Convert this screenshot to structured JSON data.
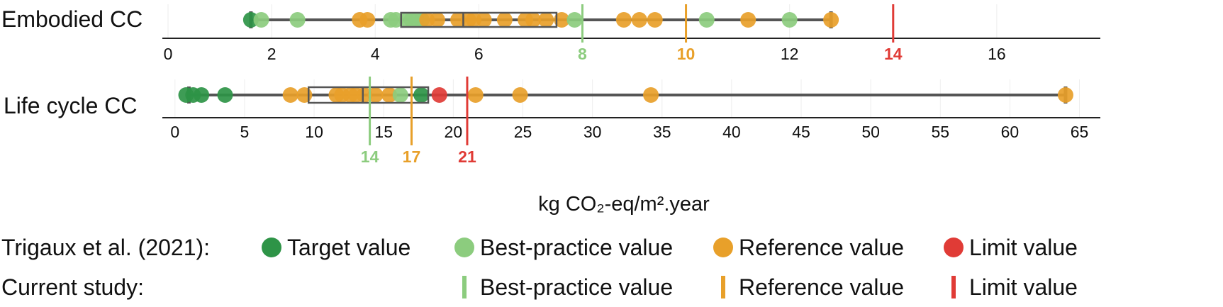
{
  "colors": {
    "target": "#2e9447",
    "best_practice": "#8ccc7e",
    "reference": "#e8a02a",
    "limit": "#e03b36",
    "box": "#555555",
    "axis": "#222222",
    "grid": "#eeeeee"
  },
  "chart_data": [
    {
      "type": "box-strip",
      "row_label": "Embodied CC",
      "xlim": [
        0,
        18
      ],
      "ticks": [
        0,
        2,
        4,
        6,
        8,
        10,
        12,
        14,
        16
      ],
      "tick_labels": [
        "0",
        "2",
        "4",
        "6",
        "8",
        "10",
        "12",
        "14",
        "16"
      ],
      "box": {
        "min": 1.6,
        "q1": 4.5,
        "median": 5.7,
        "q3": 7.5,
        "max": 12.8
      },
      "points": [
        {
          "x": 1.6,
          "class": "target"
        },
        {
          "x": 1.8,
          "class": "best_practice"
        },
        {
          "x": 2.5,
          "class": "best_practice"
        },
        {
          "x": 3.7,
          "class": "reference"
        },
        {
          "x": 3.85,
          "class": "reference"
        },
        {
          "x": 4.3,
          "class": "best_practice"
        },
        {
          "x": 4.4,
          "class": "best_practice"
        },
        {
          "x": 4.6,
          "class": "best_practice"
        },
        {
          "x": 4.7,
          "class": "best_practice"
        },
        {
          "x": 4.8,
          "class": "best_practice"
        },
        {
          "x": 4.9,
          "class": "best_practice"
        },
        {
          "x": 5.0,
          "class": "reference"
        },
        {
          "x": 5.2,
          "class": "reference"
        },
        {
          "x": 5.6,
          "class": "reference"
        },
        {
          "x": 5.8,
          "class": "reference"
        },
        {
          "x": 5.9,
          "class": "reference"
        },
        {
          "x": 6.1,
          "class": "reference"
        },
        {
          "x": 6.5,
          "class": "reference"
        },
        {
          "x": 6.9,
          "class": "reference"
        },
        {
          "x": 7.05,
          "class": "reference"
        },
        {
          "x": 7.3,
          "class": "reference"
        },
        {
          "x": 7.6,
          "class": "reference"
        },
        {
          "x": 7.85,
          "class": "best_practice"
        },
        {
          "x": 8.8,
          "class": "reference"
        },
        {
          "x": 9.1,
          "class": "reference"
        },
        {
          "x": 9.4,
          "class": "reference"
        },
        {
          "x": 10.4,
          "class": "best_practice"
        },
        {
          "x": 11.2,
          "class": "reference"
        },
        {
          "x": 12.0,
          "class": "best_practice"
        },
        {
          "x": 12.8,
          "class": "reference"
        }
      ],
      "thresholds": [
        {
          "value": 8,
          "label": "8",
          "class": "best_practice"
        },
        {
          "value": 10,
          "label": "10",
          "class": "reference"
        },
        {
          "value": 14,
          "label": "14",
          "class": "limit"
        }
      ]
    },
    {
      "type": "box-strip",
      "row_label": "Life cycle CC",
      "xlim": [
        -0.5,
        66.5
      ],
      "ticks": [
        0,
        5,
        10,
        15,
        20,
        25,
        30,
        35,
        40,
        45,
        50,
        55,
        60,
        65
      ],
      "tick_labels": [
        "0",
        "5",
        "10",
        "15",
        "20",
        "25",
        "30",
        "35",
        "40",
        "45",
        "50",
        "55",
        "60",
        "65"
      ],
      "box": {
        "min": 1.0,
        "q1": 9.6,
        "median": 13.5,
        "q3": 18.2,
        "max": 64.0
      },
      "points": [
        {
          "x": 0.8,
          "class": "target"
        },
        {
          "x": 1.3,
          "class": "target"
        },
        {
          "x": 1.9,
          "class": "target"
        },
        {
          "x": 3.6,
          "class": "target"
        },
        {
          "x": 8.3,
          "class": "reference"
        },
        {
          "x": 9.3,
          "class": "reference"
        },
        {
          "x": 11.6,
          "class": "reference"
        },
        {
          "x": 12.0,
          "class": "reference"
        },
        {
          "x": 12.6,
          "class": "reference"
        },
        {
          "x": 13.0,
          "class": "reference"
        },
        {
          "x": 13.6,
          "class": "reference"
        },
        {
          "x": 14.4,
          "class": "reference"
        },
        {
          "x": 15.4,
          "class": "reference"
        },
        {
          "x": 16.2,
          "class": "best_practice"
        },
        {
          "x": 17.7,
          "class": "target"
        },
        {
          "x": 19.0,
          "class": "limit"
        },
        {
          "x": 21.6,
          "class": "reference"
        },
        {
          "x": 24.8,
          "class": "reference"
        },
        {
          "x": 34.2,
          "class": "reference"
        },
        {
          "x": 64.0,
          "class": "reference"
        }
      ],
      "thresholds": [
        {
          "value": 14,
          "label": "14",
          "class": "best_practice"
        },
        {
          "value": 17,
          "label": "17",
          "class": "reference"
        },
        {
          "value": 21,
          "label": "21",
          "class": "limit"
        }
      ]
    }
  ],
  "axis_title": "kg CO₂-eq/m².year",
  "legend": {
    "row1_label": "Trigaux et al. (2021):",
    "row1_items": [
      {
        "label": "Target value",
        "class": "target"
      },
      {
        "label": "Best-practice value",
        "class": "best_practice"
      },
      {
        "label": "Reference value",
        "class": "reference"
      },
      {
        "label": "Limit value",
        "class": "limit"
      }
    ],
    "row2_label": "Current study:",
    "row2_items": [
      {
        "label": "Best-practice value",
        "class": "best_practice"
      },
      {
        "label": "Reference value",
        "class": "reference"
      },
      {
        "label": "Limit value",
        "class": "limit"
      }
    ]
  }
}
